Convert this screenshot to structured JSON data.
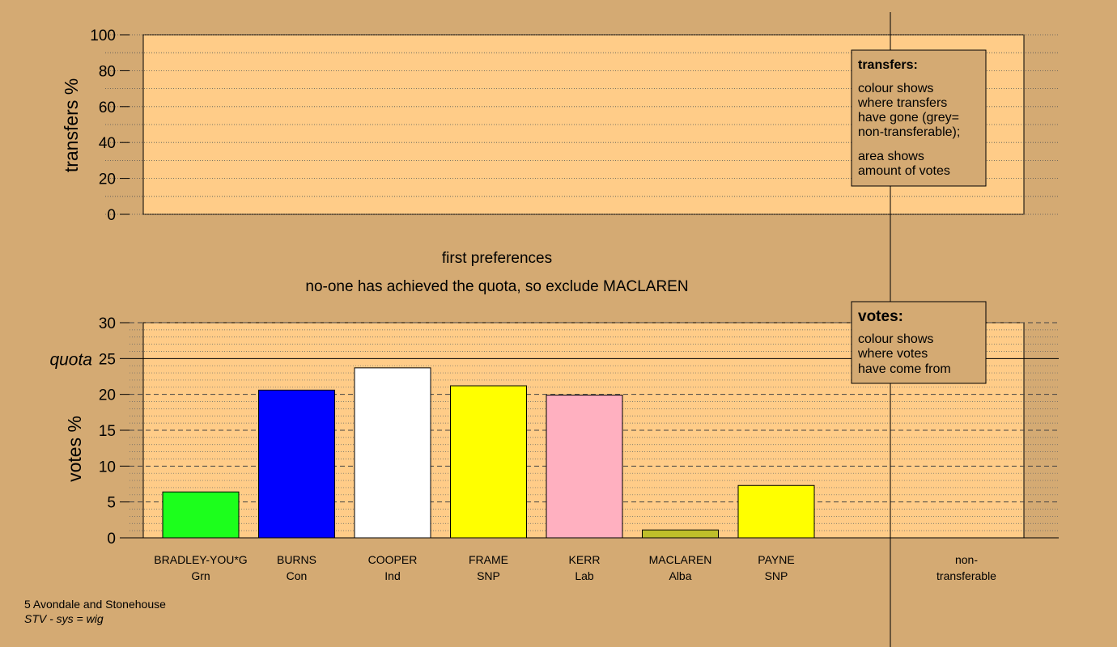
{
  "chart_data": [
    {
      "type": "bar",
      "panel": "transfers",
      "ylabel": "transfers %",
      "ylim": [
        0,
        100
      ],
      "yticks": [
        0,
        20,
        40,
        60,
        80,
        100
      ],
      "legend": {
        "title": "transfers:",
        "lines": [
          "colour shows",
          "where transfers",
          "have gone (grey=",
          "non-transferable);"
        ],
        "lines2": [
          "area shows",
          "amount of votes"
        ]
      }
    },
    {
      "type": "bar",
      "panel": "votes",
      "ylabel": "votes %",
      "ylim": [
        0,
        30
      ],
      "yticks": [
        0,
        5,
        10,
        15,
        20,
        25,
        30
      ],
      "quota": 25,
      "quota_label": "quota",
      "categories": [
        {
          "name": "BRADLEY-YOU*G",
          "party": "Grn",
          "value": 6.4,
          "color": "#1cff1c"
        },
        {
          "name": "BURNS",
          "party": "Con",
          "value": 20.6,
          "color": "#0000ff"
        },
        {
          "name": "COOPER",
          "party": "Ind",
          "value": 23.7,
          "color": "#ffffff"
        },
        {
          "name": "FRAME",
          "party": "SNP",
          "value": 21.2,
          "color": "#ffff00"
        },
        {
          "name": "KERR",
          "party": "Lab",
          "value": 19.9,
          "color": "#ffb0c0"
        },
        {
          "name": "MACLAREN",
          "party": "Alba",
          "value": 1.1,
          "color": "#bfbf2a"
        },
        {
          "name": "PAYNE",
          "party": "SNP",
          "value": 7.3,
          "color": "#ffff00"
        }
      ],
      "nontransferable_label": [
        "non-",
        "transferable"
      ],
      "legend": {
        "title": "votes:",
        "lines": [
          "colour shows",
          "where votes",
          "have come from"
        ]
      }
    }
  ],
  "headings": {
    "stage": "first preferences",
    "message": "no-one has achieved the quota, so exclude MACLAREN"
  },
  "footer": {
    "ward": "5 Avondale and Stonehouse",
    "system": "STV - sys = wig"
  },
  "colors": {
    "background": "#d4aa73",
    "plot_fill": "#ffcc88",
    "axis": "#000000"
  }
}
